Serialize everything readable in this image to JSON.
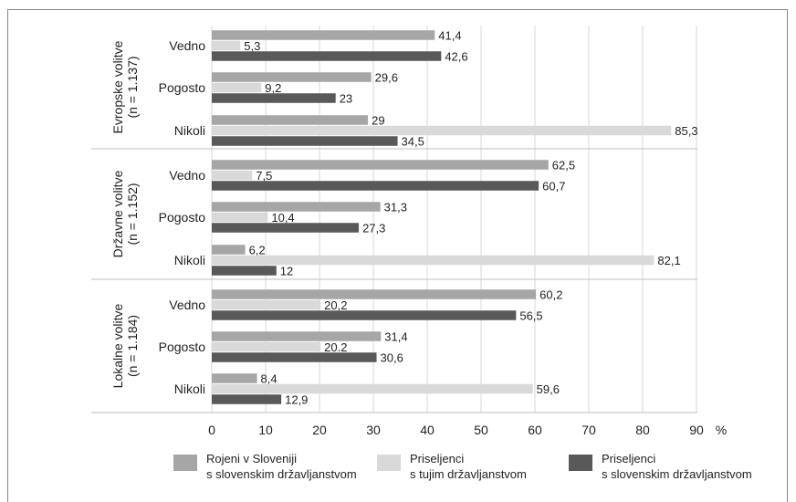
{
  "chart_data": {
    "type": "bar",
    "orientation": "horizontal",
    "unit_label": "%",
    "xlim": [
      0,
      90
    ],
    "x_ticks": [
      "0",
      "10",
      "20",
      "30",
      "40",
      "50",
      "60",
      "70",
      "80",
      "90"
    ],
    "grid": true,
    "legend_position": "bottom",
    "groups": [
      {
        "label": "Evropske volitve",
        "sublabel": "(n = 1.137)",
        "categories": [
          "Vedno",
          "Pogosto",
          "Nikoli"
        ],
        "series": [
          {
            "name": "Rojeni v Sloveniji s slovenskim državljanstvom",
            "values": [
              41.4,
              29.6,
              29
            ],
            "labels": [
              "41,4",
              "29,6",
              "29"
            ]
          },
          {
            "name": "Priseljenci s tujim državljanstvom",
            "values": [
              5.3,
              9.2,
              85.3
            ],
            "labels": [
              "5,3",
              "9,2",
              "85,3"
            ]
          },
          {
            "name": "Priseljenci s slovenskim državljanstvom",
            "values": [
              42.6,
              23,
              34.5
            ],
            "labels": [
              "42,6",
              "23",
              "34,5"
            ]
          }
        ]
      },
      {
        "label": "Državne volitve",
        "sublabel": "(n = 1.152)",
        "categories": [
          "Vedno",
          "Pogosto",
          "Nikoli"
        ],
        "series": [
          {
            "name": "Rojeni v Sloveniji s slovenskim državljanstvom",
            "values": [
              62.5,
              31.3,
              6.2
            ],
            "labels": [
              "62,5",
              "31,3",
              "6,2"
            ]
          },
          {
            "name": "Priseljenci s tujim državljanstvom",
            "values": [
              7.5,
              10.4,
              82.1
            ],
            "labels": [
              "7,5",
              "10,4",
              "82,1"
            ]
          },
          {
            "name": "Priseljenci s slovenskim državljanstvom",
            "values": [
              60.7,
              27.3,
              12
            ],
            "labels": [
              "60,7",
              "27,3",
              "12"
            ]
          }
        ]
      },
      {
        "label": "Lokalne volitve",
        "sublabel": "(n = 1.184)",
        "categories": [
          "Vedno",
          "Pogosto",
          "Nikoli"
        ],
        "series": [
          {
            "name": "Rojeni v Sloveniji s slovenskim državljanstvom",
            "values": [
              60.2,
              31.4,
              8.4
            ],
            "labels": [
              "60,2",
              "31,4",
              "8,4"
            ]
          },
          {
            "name": "Priseljenci s tujim državljanstvom",
            "values": [
              20.2,
              20.2,
              59.6
            ],
            "labels": [
              "20,2",
              "20.2",
              "59,6"
            ]
          },
          {
            "name": "Priseljenci s slovenskim državljanstvom",
            "values": [
              56.5,
              30.6,
              12.9
            ],
            "labels": [
              "56,5",
              "30,6",
              "12,9"
            ]
          }
        ]
      }
    ],
    "colors": [
      "#a6a6a6",
      "#d9d9d9",
      "#595959"
    ],
    "legend": [
      {
        "line1": "Rojeni v Sloveniji",
        "line2": "s slovenskim državljanstvom",
        "color": "#a6a6a6"
      },
      {
        "line1": "Priseljenci",
        "line2": "s tujim državljanstvom",
        "color": "#d9d9d9"
      },
      {
        "line1": "Priseljenci",
        "line2": "s slovenskim državljanstvom",
        "color": "#595959"
      }
    ]
  }
}
